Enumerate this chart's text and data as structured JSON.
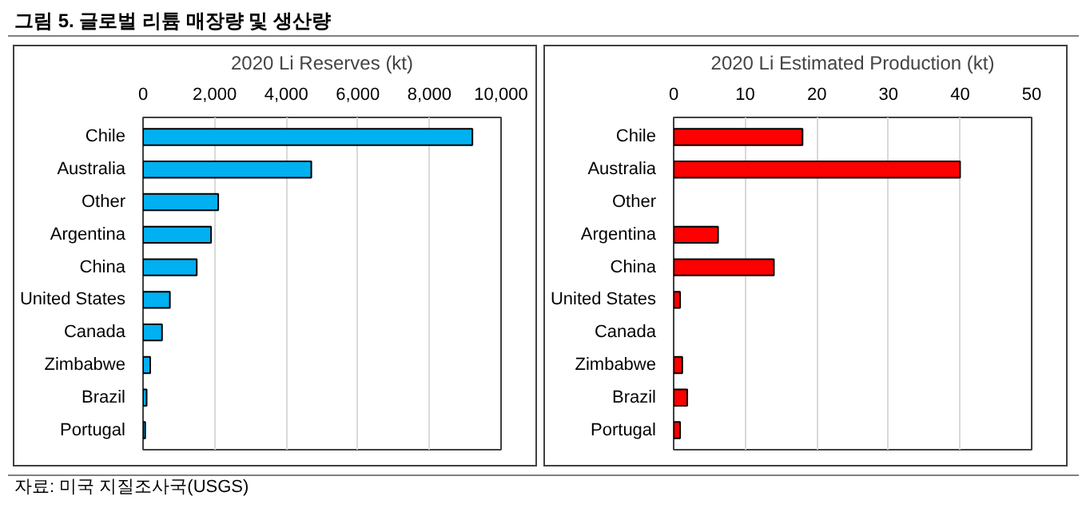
{
  "chart_data": [
    {
      "type": "bar",
      "orientation": "horizontal",
      "title": "그림 5. 글로벌 리튬 매장량 및 생산량",
      "xlabel": "2020 Li Reserves (kt)",
      "categories": [
        "Chile",
        "Australia",
        "Other",
        "Argentina",
        "China",
        "United States",
        "Canada",
        "Zimbabwe",
        "Brazil",
        "Portugal"
      ],
      "values": [
        9200,
        4700,
        2100,
        1900,
        1500,
        750,
        530,
        200,
        100,
        60
      ],
      "color": "#00b0f0",
      "xlim": [
        0,
        10000
      ],
      "xticks": [
        0,
        {
          "value": 2000,
          "label": "2,000"
        },
        {
          "value": 4000,
          "label": "4,000"
        },
        {
          "value": 6000,
          "label": "6,000"
        },
        {
          "value": 8000,
          "label": "8,000"
        },
        {
          "value": 10000,
          "label": "10,000"
        }
      ],
      "grid": "x",
      "annotations": [
        "자료: 미국 지질조사국(USGS)"
      ]
    },
    {
      "type": "bar",
      "orientation": "horizontal",
      "xlabel": "2020 Li Estimated Production (kt)",
      "categories": [
        "Chile",
        "Australia",
        "Other",
        "Argentina",
        "China",
        "United States",
        "Canada",
        "Zimbabwe",
        "Brazil",
        "Portugal"
      ],
      "values": [
        18,
        40,
        null,
        6.2,
        14,
        0.9,
        null,
        1.2,
        1.9,
        0.9
      ],
      "color": "#ff0000",
      "xlim": [
        0,
        50
      ],
      "xticks": [
        0,
        10,
        20,
        30,
        40,
        50
      ],
      "grid": "x"
    }
  ]
}
